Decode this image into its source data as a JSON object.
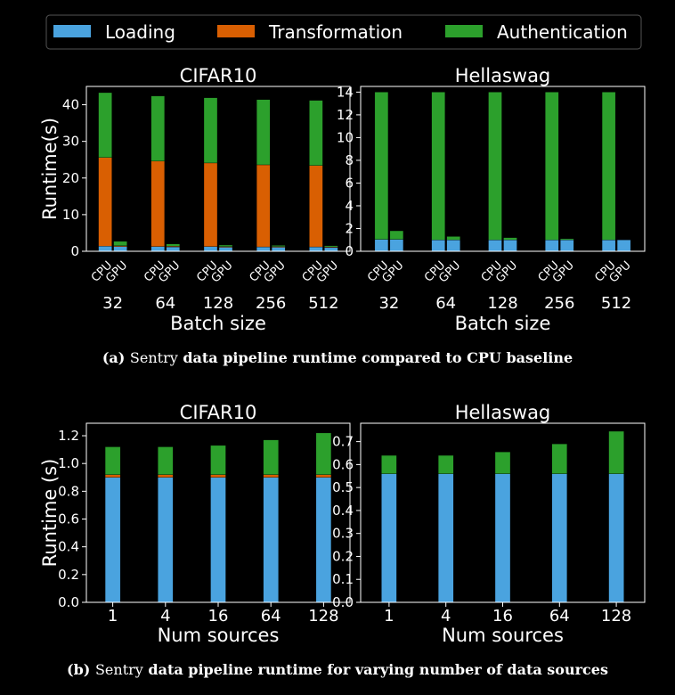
{
  "colors": {
    "loading": "#4aa3df",
    "transformation": "#d95f02",
    "authentication": "#2ca02c",
    "background": "#000000",
    "axis": "#ffffff"
  },
  "legend": {
    "items": [
      "Loading",
      "Transformation",
      "Authentication"
    ],
    "placement": "top"
  },
  "captions": {
    "a": {
      "tag": "(a)",
      "plain": "Sentry",
      "rest": "data pipeline runtime compared to CPU baseline"
    },
    "b": {
      "tag": "(b)",
      "plain": "Sentry",
      "rest": "data pipeline runtime for varying number of data sources"
    }
  },
  "chart_data": [
    {
      "type": "bar",
      "stacked": true,
      "title": "CIFAR10",
      "xlabel": "Batch size",
      "ylabel": "Runtime(s)",
      "categories": [
        "32",
        "64",
        "128",
        "256",
        "512"
      ],
      "subcategories": [
        "CPU",
        "GPU"
      ],
      "ylim": [
        0,
        45
      ],
      "yticks": [
        0,
        10,
        20,
        30,
        40
      ],
      "series": [
        {
          "name": "Loading",
          "CPU": [
            1.4,
            1.3,
            1.3,
            1.2,
            1.2
          ],
          "GPU": [
            1.3,
            1.2,
            1.1,
            1.1,
            1.0
          ]
        },
        {
          "name": "Transformation",
          "CPU": [
            24.2,
            23.3,
            22.8,
            22.4,
            22.2
          ],
          "GPU": [
            0.2,
            0.2,
            0.2,
            0.2,
            0.2
          ]
        },
        {
          "name": "Authentication",
          "CPU": [
            17.7,
            17.8,
            17.8,
            17.8,
            17.8
          ],
          "GPU": [
            1.2,
            0.6,
            0.4,
            0.3,
            0.3
          ]
        }
      ]
    },
    {
      "type": "bar",
      "stacked": true,
      "title": "Hellaswag",
      "xlabel": "Batch size",
      "ylabel": "",
      "categories": [
        "32",
        "64",
        "128",
        "256",
        "512"
      ],
      "subcategories": [
        "CPU",
        "GPU"
      ],
      "ylim": [
        0,
        14.5
      ],
      "yticks": [
        0,
        2,
        4,
        6,
        8,
        10,
        12,
        14
      ],
      "series": [
        {
          "name": "Loading",
          "CPU": [
            1.05,
            1.0,
            1.0,
            1.0,
            1.0
          ],
          "GPU": [
            1.05,
            1.0,
            1.0,
            1.0,
            1.0
          ]
        },
        {
          "name": "Transformation",
          "CPU": [
            0,
            0,
            0,
            0,
            0
          ],
          "GPU": [
            0,
            0,
            0,
            0,
            0
          ]
        },
        {
          "name": "Authentication",
          "CPU": [
            12.95,
            13.0,
            13.0,
            13.0,
            13.0
          ],
          "GPU": [
            0.75,
            0.3,
            0.2,
            0.1,
            0.0
          ]
        }
      ]
    },
    {
      "type": "bar",
      "stacked": true,
      "title": "CIFAR10",
      "xlabel": "Num sources",
      "ylabel": "Runtime (s)",
      "categories": [
        "1",
        "4",
        "16",
        "64",
        "128"
      ],
      "ylim": [
        0,
        1.29
      ],
      "yticks": [
        "0.0",
        "0.2",
        "0.4",
        "0.6",
        "0.8",
        "1.0",
        "1.2"
      ],
      "series": [
        {
          "name": "Loading",
          "values": [
            0.9,
            0.9,
            0.9,
            0.9,
            0.9
          ]
        },
        {
          "name": "Transformation",
          "values": [
            0.02,
            0.02,
            0.02,
            0.02,
            0.02
          ]
        },
        {
          "name": "Authentication",
          "values": [
            0.2,
            0.2,
            0.21,
            0.25,
            0.3
          ]
        }
      ]
    },
    {
      "type": "bar",
      "stacked": true,
      "title": "Hellaswag",
      "xlabel": "Num sources",
      "ylabel": "",
      "categories": [
        "1",
        "4",
        "16",
        "64",
        "128"
      ],
      "ylim": [
        0,
        0.78
      ],
      "yticks": [
        "0.0",
        "0.1",
        "0.2",
        "0.3",
        "0.4",
        "0.5",
        "0.6",
        "0.7"
      ],
      "series": [
        {
          "name": "Loading",
          "values": [
            0.56,
            0.56,
            0.56,
            0.56,
            0.56
          ]
        },
        {
          "name": "Transformation",
          "values": [
            0,
            0,
            0,
            0,
            0
          ]
        },
        {
          "name": "Authentication",
          "values": [
            0.08,
            0.08,
            0.095,
            0.13,
            0.185
          ]
        }
      ]
    }
  ]
}
